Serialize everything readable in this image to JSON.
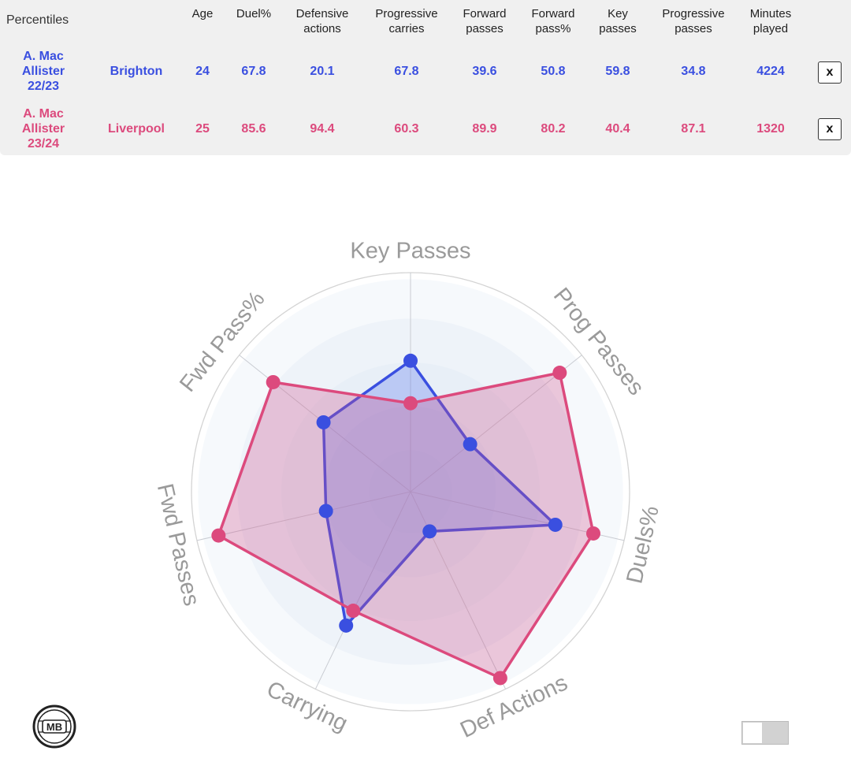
{
  "table": {
    "header_label": "Percentiles",
    "columns": [
      "Age",
      "Duel%",
      "Defensive\nactions",
      "Progressive\ncarries",
      "Forward\npasses",
      "Forward\npass%",
      "Key\npasses",
      "Progressive\npasses",
      "Minutes\nplayed"
    ],
    "rows": [
      {
        "player": "A. Mac\nAllister\n22/23",
        "team": "Brighton",
        "values": [
          "24",
          "67.8",
          "20.1",
          "67.8",
          "39.6",
          "50.8",
          "59.8",
          "34.8",
          "4224"
        ],
        "color": "#3a4fe0",
        "remove_label": "x"
      },
      {
        "player": "A. Mac\nAllister\n23/24",
        "team": "Liverpool",
        "values": [
          "25",
          "85.6",
          "94.4",
          "60.3",
          "89.9",
          "80.2",
          "40.4",
          "87.1",
          "1320"
        ],
        "color": "#dc4a7d",
        "remove_label": "x"
      }
    ]
  },
  "chart_data": {
    "type": "radar",
    "axes": [
      "Key Passes",
      "Prog Passes",
      "Duels%",
      "Def Actions",
      "Carrying",
      "Fwd Passes",
      "Fwd Pass%"
    ],
    "range": [
      0,
      100
    ],
    "grid": true,
    "series": [
      {
        "values": [
          59.8,
          34.8,
          67.8,
          20.1,
          67.8,
          39.6,
          50.8
        ],
        "color": "#3a4fe0",
        "fill": "rgba(82,112,240,0.30)"
      },
      {
        "values": [
          40.4,
          87.1,
          85.6,
          94.4,
          60.3,
          89.9,
          80.2
        ],
        "color": "#dc4a7d",
        "fill": "rgba(206,80,140,0.30)"
      }
    ]
  },
  "logo_text": "MB",
  "toggle": {
    "state": "off"
  },
  "icons": {
    "remove": "close-icon",
    "logo": "mb-logo-icon"
  }
}
